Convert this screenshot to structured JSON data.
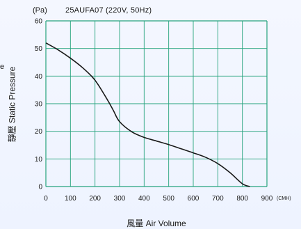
{
  "chart_data": {
    "type": "line",
    "title": "25AUFA07 (220V, 50Hz)",
    "ylabel": "Static Pressure",
    "ylabel_cjk": "靜壓",
    "y_unit": "(Pa)",
    "xlabel": "Air Volume",
    "xlabel_cjk": "風量",
    "x_unit": "(CMH)",
    "xlim": [
      0,
      900
    ],
    "ylim": [
      0,
      60
    ],
    "x_ticks": [
      0,
      100,
      200,
      300,
      400,
      500,
      600,
      700,
      800,
      900
    ],
    "y_ticks": [
      0,
      10,
      20,
      30,
      40,
      50,
      60
    ],
    "grid": true,
    "curve_color": "#1a1a1a",
    "grid_color": "#25a37d",
    "x": [
      0,
      50,
      100,
      150,
      200,
      250,
      275,
      300,
      350,
      400,
      450,
      500,
      550,
      600,
      650,
      700,
      750,
      800,
      830
    ],
    "y": [
      52,
      49.5,
      46.5,
      43,
      38.5,
      31.5,
      27.5,
      23.5,
      19.8,
      17.8,
      16.5,
      15.2,
      13.7,
      12.2,
      10.6,
      8.3,
      5.0,
      1.0,
      0
    ]
  },
  "page": {
    "left_edge_char": "e"
  }
}
